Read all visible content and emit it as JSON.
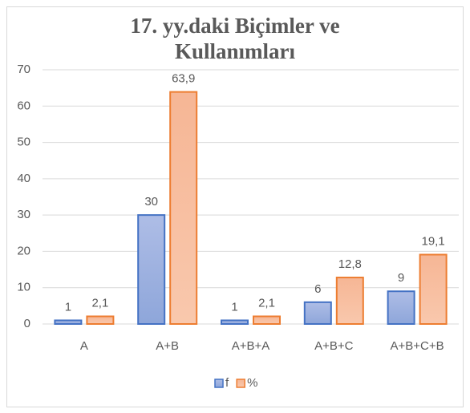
{
  "chart_data": {
    "type": "bar",
    "title": "17. yy.daki Biçimler ve Kullanımları",
    "categories": [
      "A",
      "A+B",
      "A+B+A",
      "A+B+C",
      "A+B+C+B"
    ],
    "series": [
      {
        "name": "f",
        "color": "#4472c4",
        "values": [
          1,
          30,
          1,
          6,
          9
        ]
      },
      {
        "name": "%",
        "color": "#ed7d31",
        "values": [
          2.1,
          63.9,
          2.1,
          12.8,
          19.1
        ],
        "value_labels": [
          "2,1",
          "63,9",
          "2,1",
          "12,8",
          "19,1"
        ]
      }
    ],
    "ylim": [
      0,
      70
    ],
    "yticks": [
      0,
      10,
      20,
      30,
      40,
      50,
      60,
      70
    ],
    "grid": true,
    "legend": "bottom"
  }
}
